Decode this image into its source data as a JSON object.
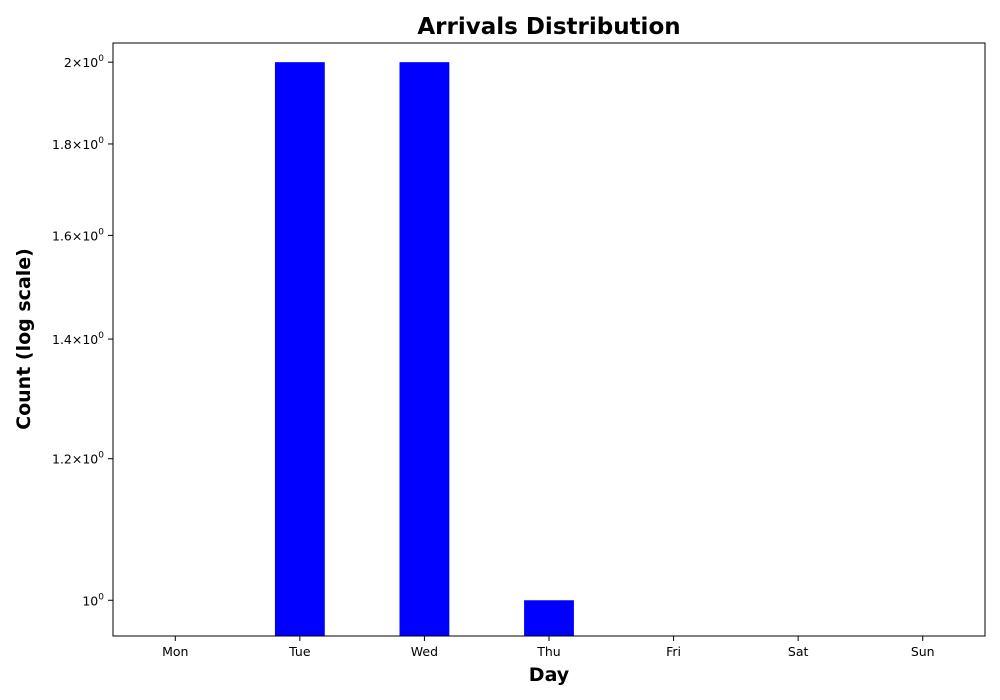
{
  "chart_data": {
    "type": "bar",
    "title": "Arrivals Distribution",
    "xlabel": "Day",
    "ylabel": "Count (log scale)",
    "yscale": "log",
    "categories": [
      "Mon",
      "Tue",
      "Wed",
      "Thu",
      "Fri",
      "Sat",
      "Sun"
    ],
    "values": [
      null,
      2,
      2,
      1,
      null,
      null,
      null
    ],
    "ylim": [
      0.955,
      2.05
    ],
    "yticks": [
      {
        "value": 1.0,
        "mantissa": "",
        "exponent": "0"
      },
      {
        "value": 1.2,
        "mantissa": "1.2",
        "exponent": "0"
      },
      {
        "value": 1.4,
        "mantissa": "1.4",
        "exponent": "0"
      },
      {
        "value": 1.6,
        "mantissa": "1.6",
        "exponent": "0"
      },
      {
        "value": 1.8,
        "mantissa": "1.8",
        "exponent": "0"
      },
      {
        "value": 2.0,
        "mantissa": "2",
        "exponent": "0"
      }
    ],
    "bar_color": "#0000ff",
    "grid": false,
    "legend": "none"
  }
}
